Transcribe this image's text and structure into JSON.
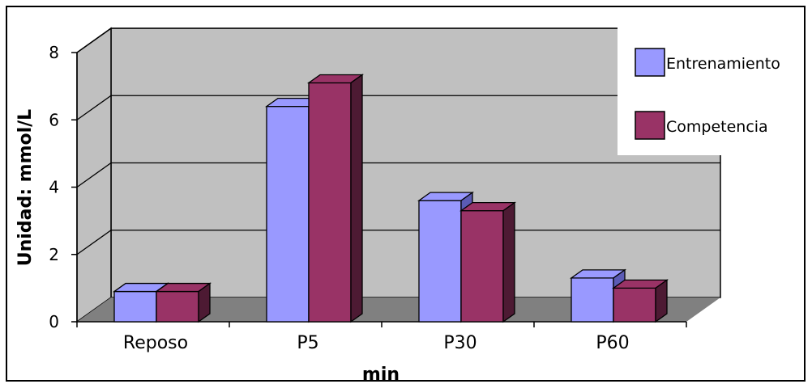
{
  "chart_data": {
    "type": "bar",
    "style": "3d-clustered-column",
    "title": "",
    "xlabel": "min",
    "ylabel": "Unidad: mmol/L",
    "categories": [
      "Reposo",
      "P5",
      "P30",
      "P60"
    ],
    "ylim": [
      0,
      8
    ],
    "yticks": [
      "0",
      "2",
      "4",
      "6",
      "8"
    ],
    "grid": true,
    "legend_position": "top-right",
    "series": [
      {
        "name": "Entrenamiento",
        "values": [
          0.9,
          6.4,
          3.6,
          1.3
        ],
        "color": "#9999ff",
        "dark_color": "#5b5bb5"
      },
      {
        "name": "Competencia",
        "values": [
          0.9,
          7.1,
          3.3,
          1.0
        ],
        "color": "#993366",
        "dark_color": "#4d1a33"
      }
    ],
    "colors": {
      "wall": "#c0c0c0",
      "floor": "#808080",
      "gridline": "#000000"
    }
  }
}
